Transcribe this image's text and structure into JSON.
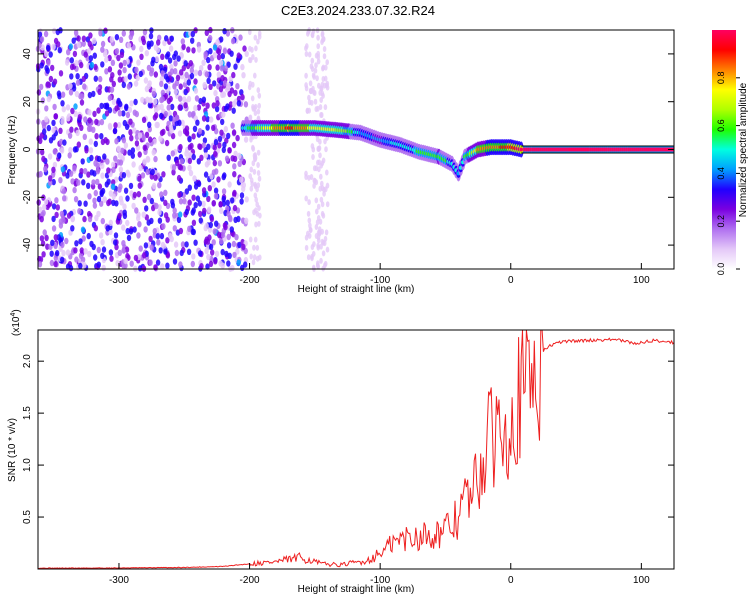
{
  "title": "C2E3.2024.233.07.32.R24",
  "chart_data": [
    {
      "type": "heatmap",
      "xlabel": "Height of straight line (km)",
      "ylabel": "Frequency (Hz)",
      "xlim": [
        -362,
        125
      ],
      "ylim": [
        -50,
        50
      ],
      "xticks": [
        -300,
        -200,
        -100,
        0,
        100
      ],
      "yticks": [
        -40,
        -20,
        0,
        20,
        40
      ],
      "colorbar": {
        "label": "Normalized spectral amplitude",
        "range": [
          0,
          1
        ],
        "ticks": [
          "0.0",
          "0.2",
          "0.4",
          "0.6",
          "0.8"
        ],
        "colors": [
          "#ffffff",
          "#e4c8f8",
          "#b070f0",
          "#7a00e0",
          "#2000ff",
          "#00a0ff",
          "#00ffe0",
          "#20ff00",
          "#b0ff00",
          "#ffff00",
          "#ff8000",
          "#ff0000",
          "#ff0060"
        ]
      },
      "noise_region": {
        "x": [
          -362,
          -202
        ],
        "level": 0.3
      },
      "signal_path": [
        {
          "x": -205,
          "freq": 9,
          "amp": 0.5
        },
        {
          "x": -190,
          "freq": 9,
          "amp": 0.7
        },
        {
          "x": -170,
          "freq": 9,
          "amp": 0.9
        },
        {
          "x": -150,
          "freq": 9,
          "amp": 0.75
        },
        {
          "x": -130,
          "freq": 8,
          "amp": 0.7
        },
        {
          "x": -115,
          "freq": 7,
          "amp": 0.45
        },
        {
          "x": -100,
          "freq": 4,
          "amp": 0.4
        },
        {
          "x": -85,
          "freq": 2,
          "amp": 0.5
        },
        {
          "x": -70,
          "freq": -1,
          "amp": 0.55
        },
        {
          "x": -55,
          "freq": -3,
          "amp": 0.6
        },
        {
          "x": -45,
          "freq": -6,
          "amp": 0.5
        },
        {
          "x": -40,
          "freq": -10,
          "amp": 0.45
        },
        {
          "x": -35,
          "freq": -3,
          "amp": 0.55
        },
        {
          "x": -25,
          "freq": 0,
          "amp": 0.8
        },
        {
          "x": -15,
          "freq": 1,
          "amp": 0.85
        },
        {
          "x": 0,
          "freq": 1,
          "amp": 0.9
        },
        {
          "x": 8,
          "freq": 0,
          "amp": 1.0
        },
        {
          "x": 125,
          "freq": 0,
          "amp": 1.0
        }
      ]
    },
    {
      "type": "line",
      "xlabel": "Height of straight line (km)",
      "ylabel": "SNR (10 * v/v)",
      "multiplier": "(x10",
      "multiplier_exp": "4",
      "xlim": [
        -362,
        125
      ],
      "ylim": [
        0,
        23000
      ],
      "xticks": [
        -300,
        -200,
        -100,
        0,
        100
      ],
      "yticks": [
        5000,
        10000,
        15000,
        20000
      ],
      "ytick_labels": [
        "0.5",
        "1.0",
        "1.5",
        "2.0"
      ],
      "series_color": "#ee2020",
      "series": [
        {
          "x": -362,
          "y": 80
        },
        {
          "x": -300,
          "y": 100
        },
        {
          "x": -250,
          "y": 150
        },
        {
          "x": -220,
          "y": 250
        },
        {
          "x": -200,
          "y": 500
        },
        {
          "x": -180,
          "y": 700
        },
        {
          "x": -160,
          "y": 1100
        },
        {
          "x": -145,
          "y": 500
        },
        {
          "x": -130,
          "y": 400
        },
        {
          "x": -110,
          "y": 800
        },
        {
          "x": -100,
          "y": 1500
        },
        {
          "x": -90,
          "y": 2500
        },
        {
          "x": -80,
          "y": 3000
        },
        {
          "x": -70,
          "y": 3200
        },
        {
          "x": -60,
          "y": 3400
        },
        {
          "x": -50,
          "y": 3600
        },
        {
          "x": -40,
          "y": 5000
        },
        {
          "x": -35,
          "y": 7000
        },
        {
          "x": -30,
          "y": 6500
        },
        {
          "x": -25,
          "y": 9000
        },
        {
          "x": -20,
          "y": 11000
        },
        {
          "x": -15,
          "y": 12500
        },
        {
          "x": -10,
          "y": 14000
        },
        {
          "x": -5,
          "y": 15000
        },
        {
          "x": 0,
          "y": 16000
        },
        {
          "x": 5,
          "y": 16500
        },
        {
          "x": 10,
          "y": 18000
        },
        {
          "x": 15,
          "y": 19000
        },
        {
          "x": 20,
          "y": 20500
        },
        {
          "x": 25,
          "y": 21000
        },
        {
          "x": 30,
          "y": 21500
        },
        {
          "x": 40,
          "y": 21900
        },
        {
          "x": 60,
          "y": 22000
        },
        {
          "x": 80,
          "y": 22100
        },
        {
          "x": 95,
          "y": 21700
        },
        {
          "x": 110,
          "y": 22000
        },
        {
          "x": 125,
          "y": 21800
        }
      ]
    }
  ]
}
